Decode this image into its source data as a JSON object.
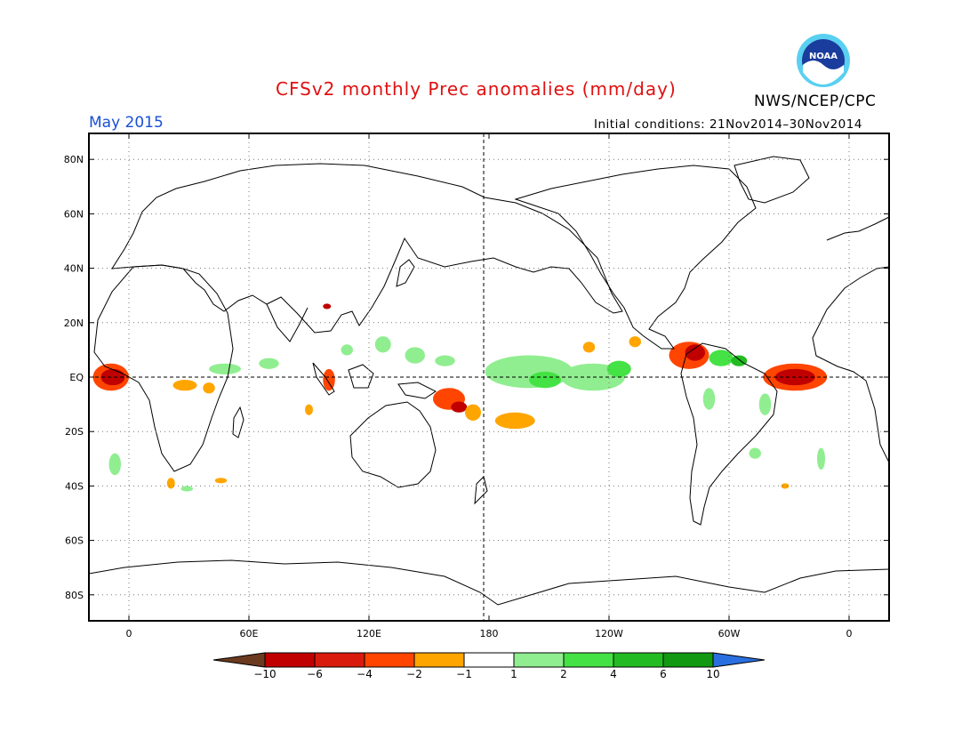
{
  "title": "CFSv2 monthly Prec anomalies (mm/day)",
  "org": "NWS/NCEP/CPC",
  "logo_text": "NOAA",
  "month": "May 2015",
  "initial_conditions": "Initial conditions: 21Nov2014–30Nov2014",
  "colors": {
    "title": "#e01010",
    "month": "#1a4fd6"
  },
  "lat_ticks": [
    {
      "lat": 80,
      "label": "80N"
    },
    {
      "lat": 60,
      "label": "60N"
    },
    {
      "lat": 40,
      "label": "40N"
    },
    {
      "lat": 20,
      "label": "20N"
    },
    {
      "lat": 0,
      "label": "EQ"
    },
    {
      "lat": -20,
      "label": "20S"
    },
    {
      "lat": -40,
      "label": "40S"
    },
    {
      "lat": -60,
      "label": "60S"
    },
    {
      "lat": -80,
      "label": "80S"
    }
  ],
  "lon_ticks": [
    {
      "lon": 0,
      "label": "0"
    },
    {
      "lon": 60,
      "label": "60E"
    },
    {
      "lon": 120,
      "label": "120E"
    },
    {
      "lon": 180,
      "label": "180"
    },
    {
      "lon": 240,
      "label": "120W"
    },
    {
      "lon": 300,
      "label": "60W"
    },
    {
      "lon": 360,
      "label": "0"
    }
  ],
  "colorbar": {
    "labels": [
      "−10",
      "−6",
      "−4",
      "−2",
      "−1",
      "1",
      "2",
      "4",
      "6",
      "10"
    ],
    "colors": [
      "#6b3a1f",
      "#c00000",
      "#d81b0c",
      "#ff4500",
      "#ffa500",
      "#ffffff",
      "#90ee90",
      "#44e244",
      "#22bb22",
      "#119911",
      "#2a6fe0"
    ]
  },
  "anomaly_regions": [
    {
      "lon": -9,
      "lat": 0,
      "rx": 9,
      "ry": 5,
      "color": "#ff4500"
    },
    {
      "lon": -8,
      "lat": 0,
      "rx": 6,
      "ry": 3,
      "color": "#c00000"
    },
    {
      "lon": 28,
      "lat": -3,
      "rx": 6,
      "ry": 2,
      "color": "#ffa500"
    },
    {
      "lon": 48,
      "lat": 3,
      "rx": 8,
      "ry": 2,
      "color": "#90ee90"
    },
    {
      "lon": 70,
      "lat": 5,
      "rx": 5,
      "ry": 2,
      "color": "#90ee90"
    },
    {
      "lon": 40,
      "lat": -4,
      "rx": 3,
      "ry": 2,
      "color": "#ffa500"
    },
    {
      "lon": 99,
      "lat": 26,
      "rx": 2,
      "ry": 1,
      "color": "#c00000"
    },
    {
      "lon": 109,
      "lat": 10,
      "rx": 3,
      "ry": 2,
      "color": "#90ee90"
    },
    {
      "lon": 127,
      "lat": 12,
      "rx": 4,
      "ry": 3,
      "color": "#90ee90"
    },
    {
      "lon": 143,
      "lat": 8,
      "rx": 5,
      "ry": 3,
      "color": "#90ee90"
    },
    {
      "lon": 158,
      "lat": 6,
      "rx": 5,
      "ry": 2,
      "color": "#90ee90"
    },
    {
      "lon": 100,
      "lat": -1,
      "rx": 3,
      "ry": 4,
      "color": "#ff4500"
    },
    {
      "lon": 90,
      "lat": -12,
      "rx": 2,
      "ry": 2,
      "color": "#ffa500"
    },
    {
      "lon": 160,
      "lat": -8,
      "rx": 8,
      "ry": 4,
      "color": "#ff4500"
    },
    {
      "lon": 165,
      "lat": -11,
      "rx": 4,
      "ry": 2,
      "color": "#c00000"
    },
    {
      "lon": 172,
      "lat": -13,
      "rx": 4,
      "ry": 3,
      "color": "#ffa500"
    },
    {
      "lon": 193,
      "lat": -16,
      "rx": 10,
      "ry": 3,
      "color": "#ffa500"
    },
    {
      "lon": 200,
      "lat": 2,
      "rx": 22,
      "ry": 6,
      "color": "#90ee90"
    },
    {
      "lon": 232,
      "lat": 0,
      "rx": 16,
      "ry": 5,
      "color": "#90ee90"
    },
    {
      "lon": 208,
      "lat": -1,
      "rx": 8,
      "ry": 3,
      "color": "#44e244"
    },
    {
      "lon": 245,
      "lat": 3,
      "rx": 6,
      "ry": 3,
      "color": "#44e244"
    },
    {
      "lon": 280,
      "lat": 8,
      "rx": 10,
      "ry": 5,
      "color": "#ff4500"
    },
    {
      "lon": 283,
      "lat": 9,
      "rx": 5,
      "ry": 3,
      "color": "#c00000"
    },
    {
      "lon": 230,
      "lat": 11,
      "rx": 3,
      "ry": 2,
      "color": "#ffa500"
    },
    {
      "lon": 253,
      "lat": 13,
      "rx": 3,
      "ry": 2,
      "color": "#ffa500"
    },
    {
      "lon": 296,
      "lat": 7,
      "rx": 6,
      "ry": 3,
      "color": "#44e244"
    },
    {
      "lon": 305,
      "lat": 6,
      "rx": 4,
      "ry": 2,
      "color": "#22bb22"
    },
    {
      "lon": 333,
      "lat": 0,
      "rx": 16,
      "ry": 5,
      "color": "#ff4500"
    },
    {
      "lon": 333,
      "lat": 0,
      "rx": 10,
      "ry": 3,
      "color": "#c00000"
    },
    {
      "lon": 290,
      "lat": -8,
      "rx": 3,
      "ry": 4,
      "color": "#90ee90"
    },
    {
      "lon": 318,
      "lat": -10,
      "rx": 3,
      "ry": 4,
      "color": "#90ee90"
    },
    {
      "lon": 313,
      "lat": -28,
      "rx": 3,
      "ry": 2,
      "color": "#90ee90"
    },
    {
      "lon": 346,
      "lat": -30,
      "rx": 2,
      "ry": 4,
      "color": "#90ee90"
    },
    {
      "lon": -7,
      "lat": -32,
      "rx": 3,
      "ry": 4,
      "color": "#90ee90"
    },
    {
      "lon": 21,
      "lat": -39,
      "rx": 2,
      "ry": 2,
      "color": "#ffa500"
    },
    {
      "lon": 29,
      "lat": -41,
      "rx": 3,
      "ry": 1,
      "color": "#90ee90"
    },
    {
      "lon": 46,
      "lat": -38,
      "rx": 3,
      "ry": 1,
      "color": "#ffa500"
    },
    {
      "lon": 328,
      "lat": -40,
      "rx": 2,
      "ry": 1,
      "color": "#ffa500"
    }
  ]
}
